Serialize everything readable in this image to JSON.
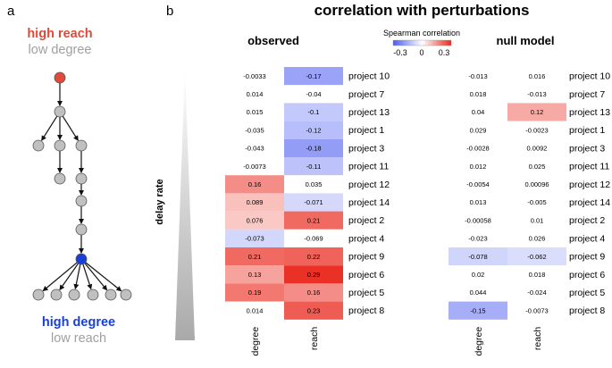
{
  "panel_a": {
    "letter": "a",
    "top_bold": "high reach",
    "top_sub": "low degree",
    "bottom_bold": "high degree",
    "bottom_sub": "low reach",
    "colors": {
      "reach": "#e04a3a",
      "degree": "#1a3fd6",
      "node": "#c0c0c0",
      "muted": "#a0a0a0"
    }
  },
  "panel_b": {
    "letter": "b",
    "title": "correlation with perturbations",
    "observed_label": "observed",
    "null_label": "null model",
    "y_axis_label": "delay rate",
    "legend": {
      "title": "Spearman correlation",
      "ticks": [
        "-0.3",
        "0",
        "0.3"
      ]
    }
  },
  "chart_data": {
    "type": "heatmap",
    "title": "correlation with perturbations",
    "ylabel": "delay rate",
    "color_scale": {
      "min": -0.3,
      "mid": 0,
      "max": 0.3,
      "low_color": "#4c5cf0",
      "mid_color": "#ffffff",
      "high_color": "#ea2a1e"
    },
    "columns": [
      "degree",
      "reach"
    ],
    "rows": [
      "project 10",
      "project 7",
      "project 13",
      "project 1",
      "project 3",
      "project 11",
      "project 12",
      "project 14",
      "project 2",
      "project 4",
      "project 9",
      "project 6",
      "project 5",
      "project 8"
    ],
    "observed": {
      "degree": [
        "-0.0033",
        "0.014",
        "0.015",
        "-0.035",
        "-0.043",
        "-0.0073",
        "0.16",
        "0.089",
        "0.076",
        "-0.073",
        "0.21",
        "0.13",
        "0.19",
        "0.014"
      ],
      "reach": [
        "-0.17",
        "-0.04",
        "-0.1",
        "-0.12",
        "-0.18",
        "-0.11",
        "0.035",
        "-0.071",
        "0.21",
        "-0.069",
        "0.22",
        "0.29",
        "0.16",
        "0.23"
      ],
      "significant": {
        "degree": [
          false,
          false,
          false,
          false,
          false,
          false,
          true,
          true,
          true,
          true,
          true,
          true,
          true,
          false
        ],
        "reach": [
          true,
          false,
          true,
          true,
          true,
          true,
          false,
          true,
          true,
          false,
          true,
          true,
          true,
          true
        ]
      }
    },
    "null_model": {
      "degree": [
        "-0.013",
        "0.018",
        "0.04",
        "0.029",
        "-0.0028",
        "0.012",
        "-0.0054",
        "0.013",
        "-0.00058",
        "-0.023",
        "-0.078",
        "0.02",
        "0.044",
        "-0.15"
      ],
      "reach": [
        "0.016",
        "-0.013",
        "0.12",
        "-0.0023",
        "0.0092",
        "0.025",
        "0.00096",
        "-0.005",
        "0.01",
        "0.026",
        "-0.062",
        "0.018",
        "-0.024",
        "-0.0073"
      ],
      "significant": {
        "degree": [
          false,
          false,
          false,
          false,
          false,
          false,
          false,
          false,
          false,
          false,
          true,
          false,
          false,
          true
        ],
        "reach": [
          false,
          false,
          true,
          false,
          false,
          false,
          false,
          false,
          false,
          false,
          true,
          false,
          false,
          false
        ]
      }
    }
  }
}
